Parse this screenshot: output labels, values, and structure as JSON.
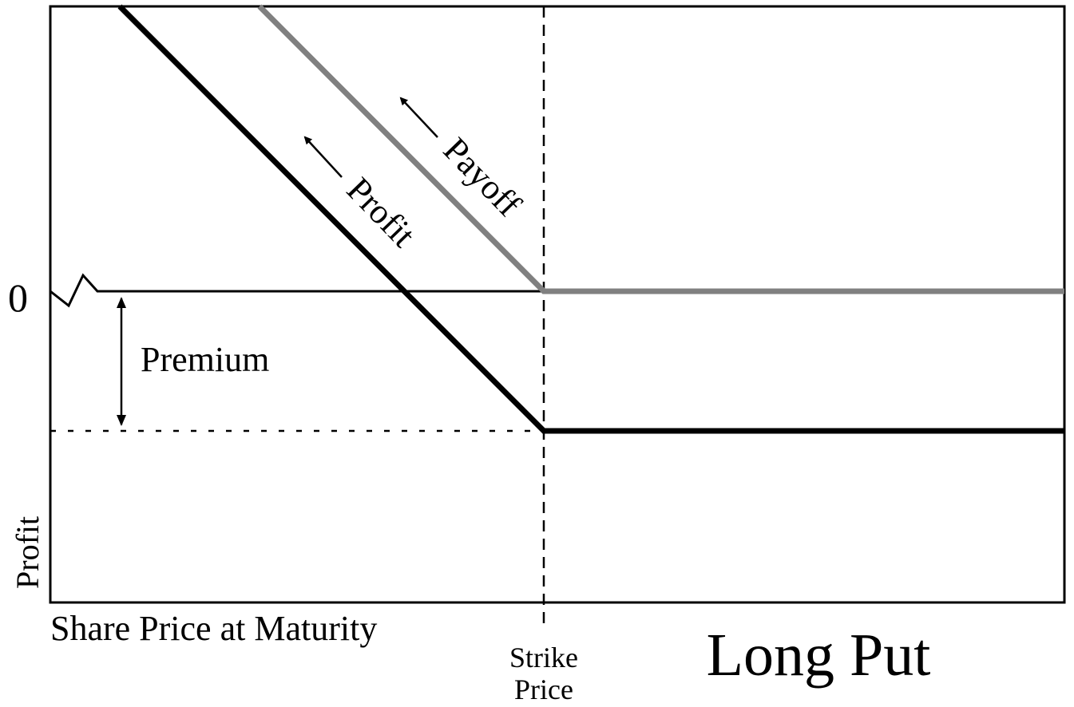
{
  "title": "Long Put",
  "labels": {
    "zero": "0",
    "premium": "Premium",
    "profit_line": "Profit",
    "payoff_line": "Payoff",
    "y_axis": "Profit",
    "x_axis": "Share Price at Maturity",
    "strike_line1": "Strike",
    "strike_line2": "Price"
  },
  "colors": {
    "profit": "#000000",
    "payoff": "#808080"
  },
  "icons": {
    "profit_arrow": "arrow-up-left-icon",
    "payoff_arrow": "arrow-up-left-icon",
    "premium_arrow": "double-arrow-vertical-icon"
  }
}
